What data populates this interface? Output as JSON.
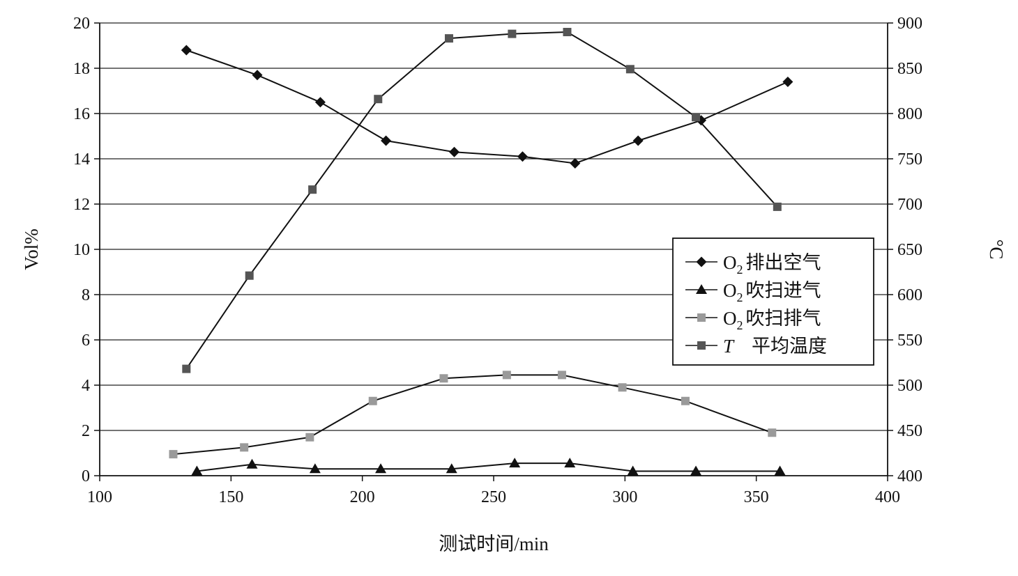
{
  "chart_data": {
    "type": "line",
    "xlabel": "测试时间/min",
    "ylabel_left": "Vol%",
    "ylabel_right": "°C",
    "xlim": [
      100,
      400
    ],
    "ylim_left": [
      0,
      20
    ],
    "ylim_right": [
      400,
      900
    ],
    "x_ticks": [
      "100",
      "150",
      "200",
      "250",
      "300",
      "350",
      "400"
    ],
    "y_left_ticks": [
      "0",
      "2",
      "4",
      "6",
      "8",
      "10",
      "12",
      "14",
      "16",
      "18",
      "20"
    ],
    "y_right_ticks": [
      "400",
      "450",
      "500",
      "550",
      "600",
      "650",
      "700",
      "750",
      "800",
      "850",
      "900"
    ],
    "grid": "horizontal",
    "legend_position": "right-middle",
    "series": [
      {
        "name": "O2 排出空气",
        "legend_main": "O",
        "legend_sub": "2",
        "legend_rest": "排出空气",
        "axis": "left",
        "marker": "diamond",
        "color": "#111111",
        "x": [
          133,
          160,
          184,
          209,
          235,
          261,
          281,
          305,
          329,
          362
        ],
        "y": [
          18.8,
          17.7,
          16.5,
          14.8,
          14.3,
          14.1,
          13.8,
          14.8,
          15.7,
          17.4
        ]
      },
      {
        "name": "O2 吹扫进气",
        "legend_main": "O",
        "legend_sub": "2",
        "legend_rest": "吹扫进气",
        "axis": "left",
        "marker": "triangle",
        "color": "#111111",
        "x": [
          137,
          158,
          182,
          207,
          234,
          258,
          279,
          303,
          327,
          359
        ],
        "y": [
          0.2,
          0.5,
          0.3,
          0.3,
          0.3,
          0.55,
          0.55,
          0.2,
          0.2,
          0.2
        ]
      },
      {
        "name": "O2 吹扫排气",
        "legend_main": "O",
        "legend_sub": "2",
        "legend_rest": "吹扫排气",
        "axis": "left",
        "marker": "square",
        "color": "#9a9a9a",
        "x": [
          128,
          155,
          180,
          204,
          231,
          255,
          276,
          299,
          323,
          356
        ],
        "y": [
          0.95,
          1.25,
          1.7,
          3.3,
          4.3,
          4.45,
          4.45,
          3.9,
          3.3,
          1.9
        ]
      },
      {
        "name": "T 平均温度",
        "legend_main": "T",
        "legend_sub": "",
        "legend_rest": "平均温度",
        "axis": "right",
        "marker": "square",
        "color": "#555555",
        "x": [
          133,
          157,
          181,
          206,
          233,
          257,
          278,
          302,
          327,
          358
        ],
        "y": [
          518,
          621,
          716,
          816,
          883,
          888,
          890,
          849,
          796,
          697
        ]
      }
    ]
  }
}
